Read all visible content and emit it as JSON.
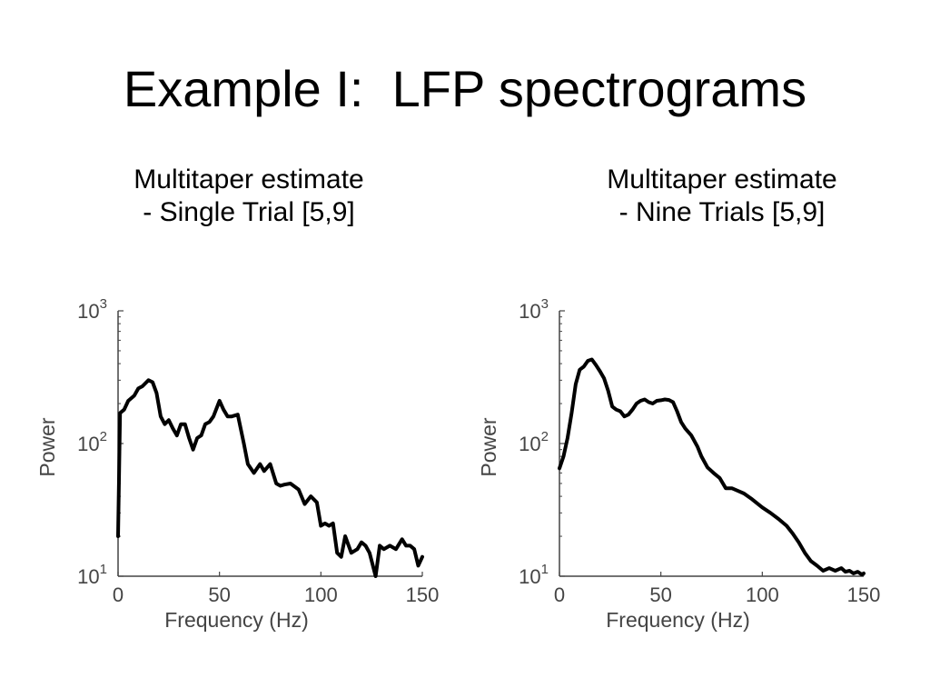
{
  "slide": {
    "title": "Example I:  LFP spectrograms"
  },
  "panels": [
    {
      "caption_lines": [
        "Multitaper estimate",
        "- Single Trial [5,9]"
      ]
    },
    {
      "caption_lines": [
        "Multitaper estimate",
        "- Nine Trials [5,9]"
      ]
    }
  ],
  "style": {
    "line_color": "#000000",
    "axis_color": "#444444"
  },
  "chart_data": [
    {
      "type": "line",
      "xlabel": "Frequency (Hz)",
      "ylabel": "Power",
      "xlim": [
        0,
        150
      ],
      "ylim": [
        10,
        1000
      ],
      "yscale": "log",
      "xticks": [
        "0",
        "50",
        "100",
        "150"
      ],
      "yticks": [
        {
          "base": "10",
          "exp": "1"
        },
        {
          "base": "10",
          "exp": "2"
        },
        {
          "base": "10",
          "exp": "3"
        }
      ],
      "grid": false,
      "series": [
        {
          "x": [
            0,
            1,
            3,
            5,
            8,
            10,
            12,
            15,
            17,
            19,
            21,
            23,
            25,
            27,
            29,
            31,
            33,
            35,
            37,
            39,
            41,
            43,
            45,
            47,
            50,
            52,
            54,
            56,
            59,
            62,
            64,
            67,
            70,
            72,
            75,
            78,
            80,
            82,
            85,
            89,
            92,
            95,
            98,
            100,
            102,
            104,
            106,
            108,
            110,
            112,
            115,
            118,
            120,
            122,
            124,
            127,
            129,
            131,
            134,
            137,
            140,
            142,
            144,
            146,
            148,
            150
          ],
          "y": [
            20,
            170,
            180,
            210,
            230,
            260,
            270,
            300,
            290,
            240,
            160,
            140,
            150,
            130,
            115,
            140,
            140,
            110,
            90,
            110,
            115,
            140,
            145,
            160,
            210,
            180,
            160,
            160,
            165,
            100,
            70,
            60,
            70,
            62,
            70,
            50,
            48,
            49,
            50,
            45,
            35,
            40,
            36,
            24,
            25,
            24,
            25,
            15,
            14,
            20,
            15,
            16,
            18,
            17,
            15,
            10,
            17,
            16,
            17,
            16,
            19,
            17,
            17,
            16,
            12,
            14
          ]
        }
      ]
    },
    {
      "type": "line",
      "xlabel": "Frequency (Hz)",
      "ylabel": "Power",
      "xlim": [
        0,
        150
      ],
      "ylim": [
        10,
        1000
      ],
      "yscale": "log",
      "xticks": [
        "0",
        "50",
        "100",
        "150"
      ],
      "yticks": [
        {
          "base": "10",
          "exp": "1"
        },
        {
          "base": "10",
          "exp": "2"
        },
        {
          "base": "10",
          "exp": "3"
        }
      ],
      "grid": false,
      "series": [
        {
          "x": [
            0,
            2,
            4,
            6,
            8,
            10,
            12,
            14,
            16,
            18,
            20,
            22,
            24,
            26,
            28,
            30,
            32,
            34,
            36,
            38,
            40,
            42,
            44,
            46,
            48,
            50,
            52,
            54,
            56,
            58,
            60,
            62,
            65,
            68,
            70,
            73,
            76,
            79,
            82,
            85,
            88,
            91,
            95,
            100,
            104,
            108,
            112,
            115,
            118,
            121,
            124,
            127,
            130,
            133,
            136,
            139,
            141,
            143,
            145,
            147,
            149,
            150
          ],
          "y": [
            65,
            80,
            110,
            170,
            280,
            360,
            380,
            420,
            430,
            390,
            350,
            310,
            250,
            190,
            180,
            175,
            160,
            165,
            180,
            200,
            210,
            215,
            205,
            200,
            210,
            212,
            215,
            213,
            205,
            175,
            145,
            130,
            115,
            95,
            80,
            66,
            60,
            55,
            46,
            46,
            44,
            42,
            38,
            33,
            30,
            27,
            24,
            21,
            18,
            15,
            13,
            12,
            11,
            11.5,
            11,
            11.5,
            10.8,
            11,
            10.5,
            10.8,
            10.3,
            10.5
          ]
        }
      ]
    }
  ]
}
